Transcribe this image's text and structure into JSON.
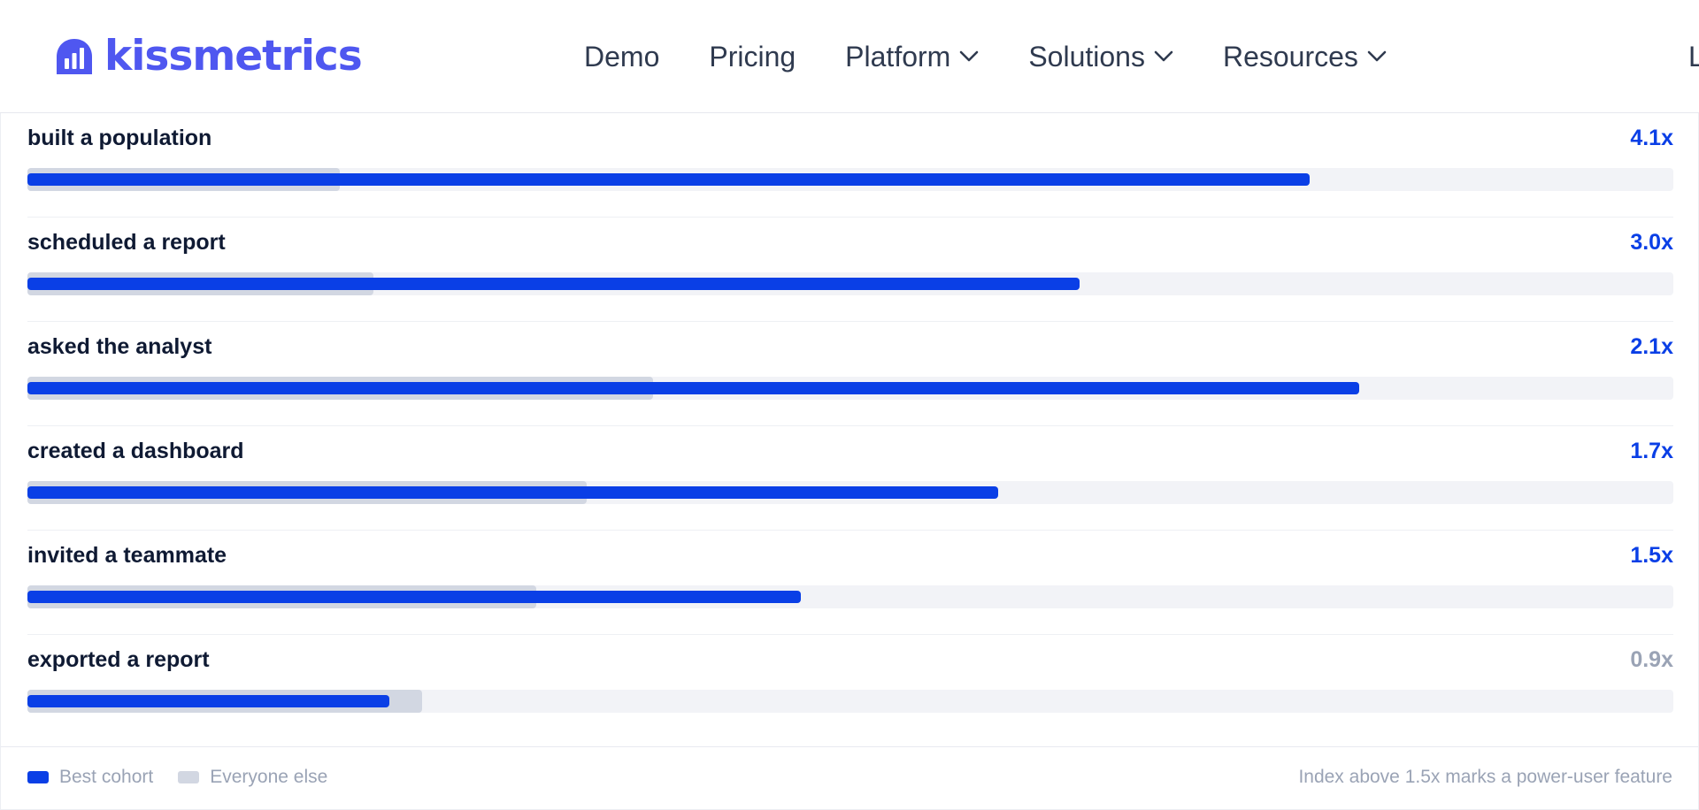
{
  "header": {
    "logo_text": "kissmetrics",
    "nav": [
      {
        "label": "Demo",
        "dropdown": false
      },
      {
        "label": "Pricing",
        "dropdown": false
      },
      {
        "label": "Platform",
        "dropdown": true
      },
      {
        "label": "Solutions",
        "dropdown": true
      },
      {
        "label": "Resources",
        "dropdown": true
      }
    ],
    "nav_cut_label": "L"
  },
  "colors": {
    "brand": "#4f57f0",
    "best_cohort": "#0a3fe6",
    "everyone_else": "#d2d7e2",
    "index_highlight": "#0a3fe6",
    "index_muted": "#9aa3b5"
  },
  "features": [
    {
      "label": "built a population",
      "index": "4.1x",
      "best": 0.779,
      "else": 0.19,
      "highlight": true
    },
    {
      "label": "scheduled a report",
      "index": "3.0x",
      "best": 0.639,
      "else": 0.21,
      "highlight": true
    },
    {
      "label": "asked the analyst",
      "index": "2.1x",
      "best": 0.809,
      "else": 0.38,
      "highlight": true
    },
    {
      "label": "created a dashboard",
      "index": "1.7x",
      "best": 0.59,
      "else": 0.34,
      "highlight": true
    },
    {
      "label": "invited a teammate",
      "index": "1.5x",
      "best": 0.47,
      "else": 0.309,
      "highlight": true
    },
    {
      "label": "exported a report",
      "index": "0.9x",
      "best": 0.22,
      "else": 0.24,
      "highlight": false
    }
  ],
  "legend": {
    "best_label": "Best cohort",
    "else_label": "Everyone else"
  },
  "note": "Index above 1.5x marks a power-user feature"
}
